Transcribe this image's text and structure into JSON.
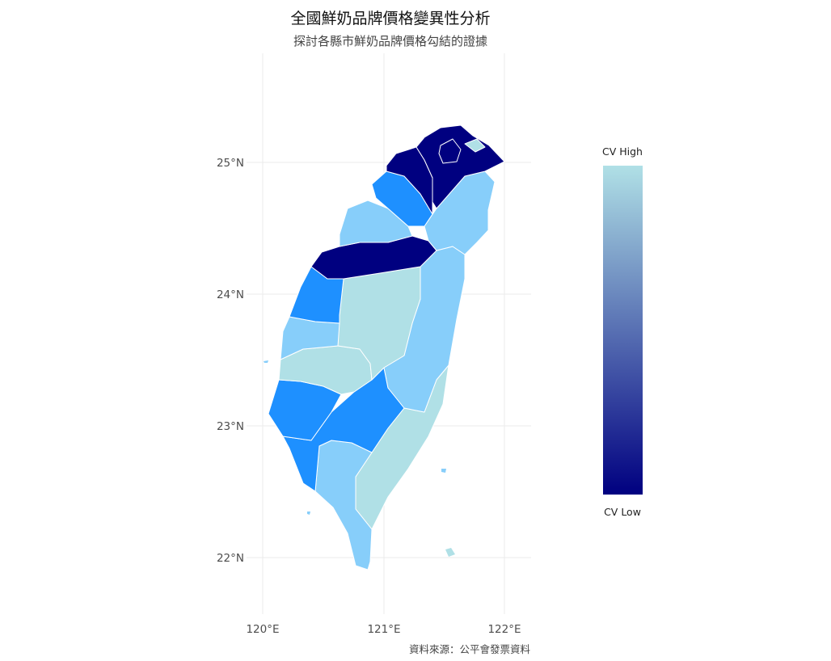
{
  "title": "全國鮮奶品牌價格變異性分析",
  "subtitle": "探討各縣市鮮奶品牌價格勾結的證據",
  "caption": "資料來源：公平會發票資料",
  "axes": {
    "x_ticks": [
      "120°E",
      "121°E",
      "122°E"
    ],
    "y_ticks": [
      "25°N",
      "24°N",
      "23°N",
      "22°N"
    ]
  },
  "legend": {
    "high_label": "CV High",
    "low_label": "CV Low",
    "high_color": "#b0e0e6",
    "low_color": "#000080"
  },
  "palette": {
    "navy": "#000080",
    "dodger_blue": "#1e90ff",
    "light_sky_blue": "#87cefa",
    "powder_blue": "#b0e0e6",
    "grid": "#ebebeb"
  },
  "region_fill_levels": {
    "taipei": "navy",
    "new_taipei": "navy",
    "keelung": "powder_blue",
    "taoyuan": "navy",
    "hsinchu": "dodger_blue",
    "miaoli": "light_sky_blue",
    "yilan": "light_sky_blue",
    "taichung": "navy",
    "changhua": "dodger_blue",
    "nantou": "powder_blue",
    "yunlin": "light_sky_blue",
    "hualien": "light_sky_blue",
    "chiayi": "powder_blue",
    "tainan": "dodger_blue",
    "kaohsiung": "dodger_blue",
    "pingtung": "light_sky_blue",
    "taitung": "powder_blue"
  }
}
